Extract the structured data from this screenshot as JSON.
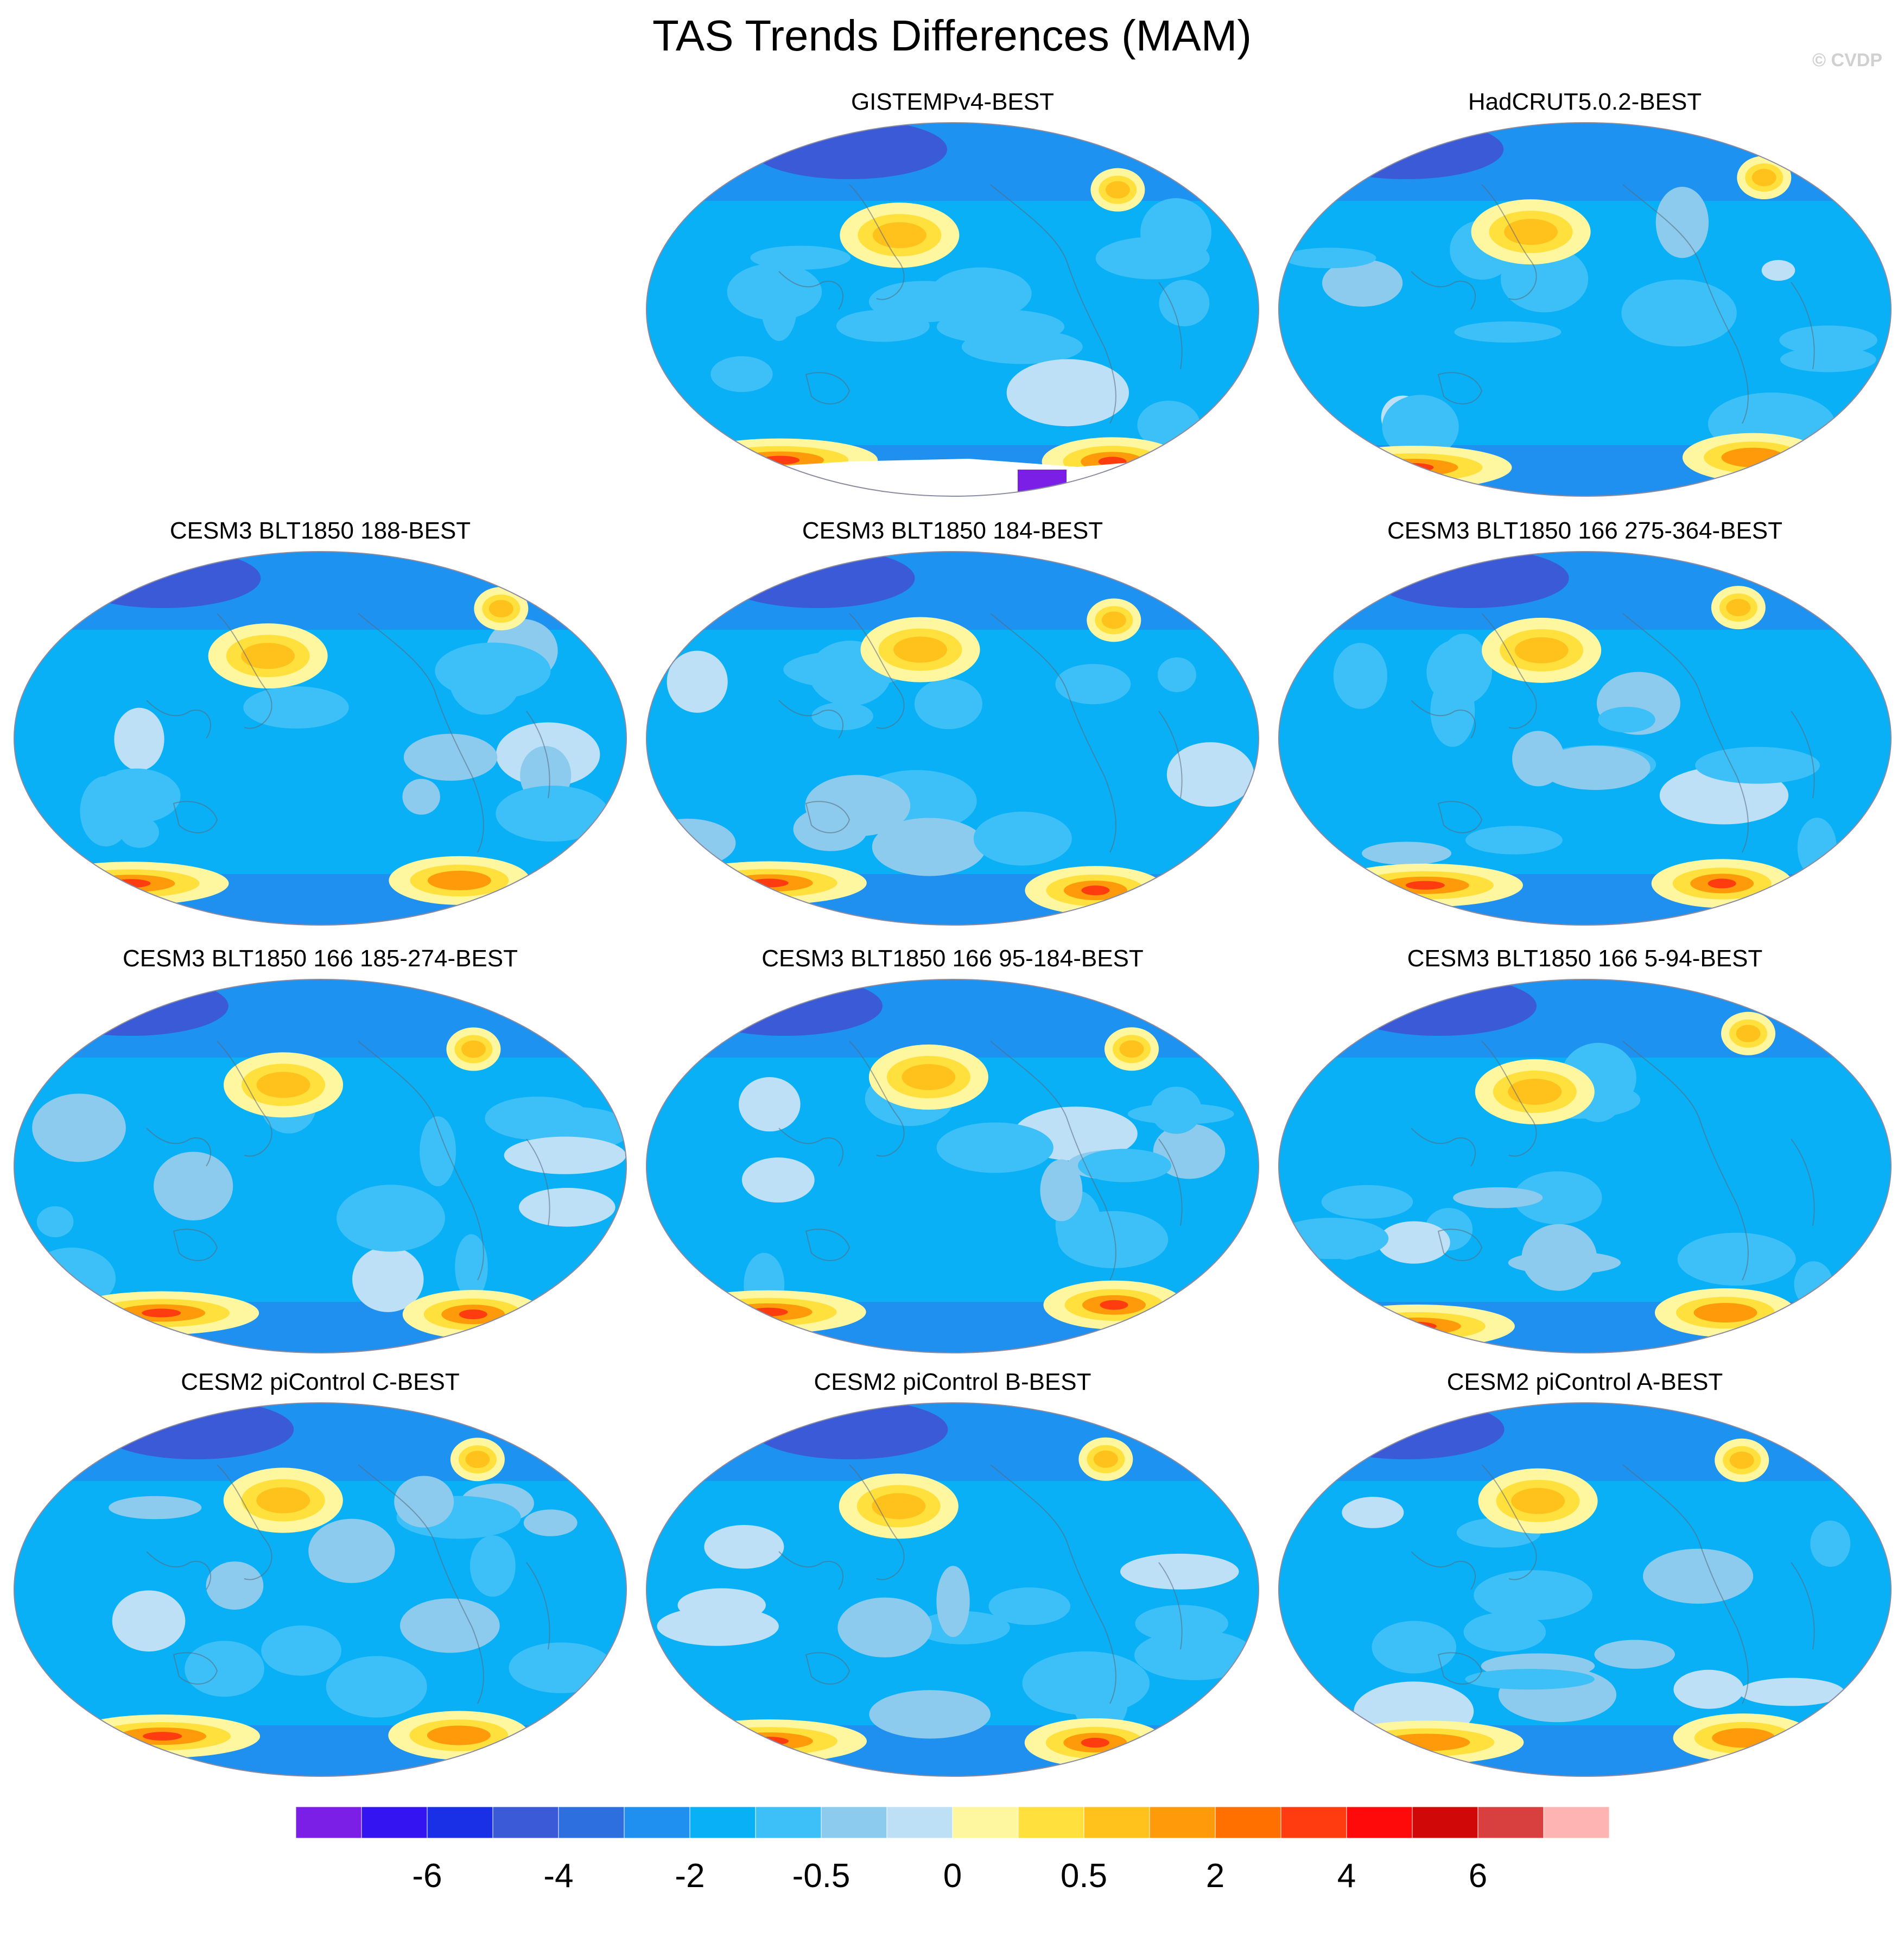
{
  "title": "TAS Trends Differences (MAM)",
  "copyright": "© CVDP",
  "panels": [
    {
      "title": "GISTEMPv4-BEST",
      "row": 0,
      "col": 1,
      "missing_antarctica": true
    },
    {
      "title": "HadCRUT5.0.2-BEST",
      "row": 0,
      "col": 2,
      "missing_antarctica": false
    },
    {
      "title": "CESM3 BLT1850 188-BEST",
      "row": 1,
      "col": 0
    },
    {
      "title": "CESM3 BLT1850 184-BEST",
      "row": 1,
      "col": 1
    },
    {
      "title": "CESM3 BLT1850 166 275-364-BEST",
      "row": 1,
      "col": 2
    },
    {
      "title": "CESM3 BLT1850 166 185-274-BEST",
      "row": 2,
      "col": 0
    },
    {
      "title": "CESM3 BLT1850 166 95-184-BEST",
      "row": 2,
      "col": 1
    },
    {
      "title": "CESM3 BLT1850 166 5-94-BEST",
      "row": 2,
      "col": 2
    },
    {
      "title": "CESM2 piControl C-BEST",
      "row": 3,
      "col": 0
    },
    {
      "title": "CESM2 piControl B-BEST",
      "row": 3,
      "col": 1
    },
    {
      "title": "CESM2 piControl A-BEST",
      "row": 3,
      "col": 2
    }
  ],
  "colorbar": {
    "colors": [
      "#7b1fe6",
      "#3414f0",
      "#1a30e6",
      "#3a5ad8",
      "#2e6fe0",
      "#1f8ff0",
      "#0ab0f5",
      "#3cc0f7",
      "#8ccbee",
      "#bde0f6",
      "#fff7a0",
      "#ffe03c",
      "#ffc21c",
      "#ff9a0a",
      "#ff7000",
      "#ff3c10",
      "#ff0a0a",
      "#d00808",
      "#d84040",
      "#ffb4b4"
    ],
    "ticks": [
      {
        "label": "-6",
        "index": 2
      },
      {
        "label": "-4",
        "index": 4
      },
      {
        "label": "-2",
        "index": 6
      },
      {
        "label": "-0.5",
        "index": 8
      },
      {
        "label": "0",
        "index": 10
      },
      {
        "label": "0.5",
        "index": 12
      },
      {
        "label": "2",
        "index": 14
      },
      {
        "label": "4",
        "index": 16
      },
      {
        "label": "6",
        "index": 18
      }
    ]
  },
  "map_colors": {
    "base": "#0ab0f5",
    "weak_cool": "#3cc0f7",
    "light": "#8ccbee",
    "pale": "#bde0f6",
    "cool": "#1f8ff0",
    "cold": "#2e6fe0",
    "colder": "#3a5ad8",
    "coldest": "#1a30e6",
    "yellow": "#fff7a0",
    "gold": "#ffe03c",
    "orange": "#ffc21c",
    "deep_orange": "#ff9a0a",
    "red_orange": "#ff7000",
    "red": "#ff3c10",
    "coast": "#5a6878"
  }
}
